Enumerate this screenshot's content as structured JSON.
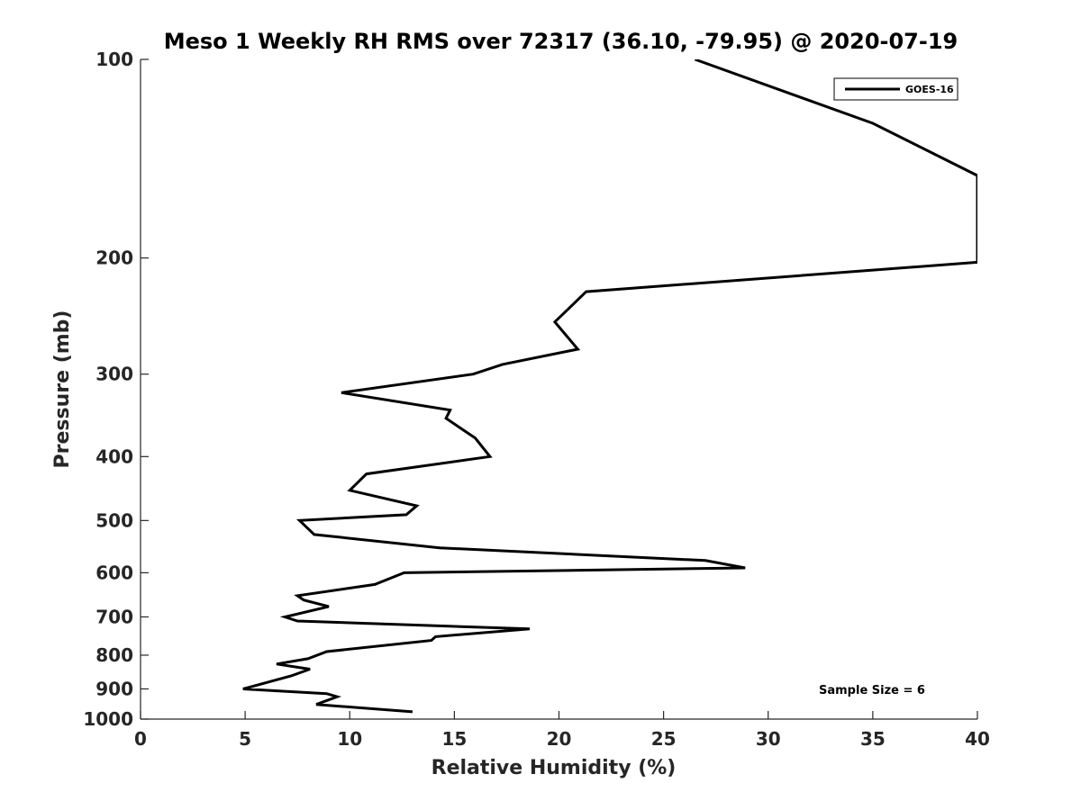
{
  "chart_data": {
    "type": "line",
    "title": "Meso 1 Weekly RH RMS over 72317 (36.10, -79.95) @ 2020-07-19",
    "xlabel": "Relative Humidity (%)",
    "ylabel": "Pressure (mb)",
    "xlim": [
      0,
      40
    ],
    "ylim": [
      100,
      1000
    ],
    "y_scale": "log",
    "y_reversed": true,
    "xticks": [
      0,
      5,
      10,
      15,
      20,
      25,
      30,
      35,
      40
    ],
    "yticks": [
      100,
      200,
      300,
      400,
      500,
      600,
      700,
      800,
      900,
      1000
    ],
    "grid": false,
    "legend_position": "top-right",
    "series": [
      {
        "name": "GOES-16",
        "color": "#000000",
        "points": [
          [
            26.5,
            100
          ],
          [
            35,
            125
          ],
          [
            40,
            150
          ],
          [
            40,
            203
          ],
          [
            21.3,
            225
          ],
          [
            19.8,
            250
          ],
          [
            20.9,
            275
          ],
          [
            17.3,
            290
          ],
          [
            15.9,
            300
          ],
          [
            9.6,
            320
          ],
          [
            14.8,
            340
          ],
          [
            14.6,
            350
          ],
          [
            16.0,
            375
          ],
          [
            16.7,
            400
          ],
          [
            10.8,
            425
          ],
          [
            10.0,
            450
          ],
          [
            13.2,
            475
          ],
          [
            12.7,
            490
          ],
          [
            7.6,
            500
          ],
          [
            8.3,
            525
          ],
          [
            14.3,
            550
          ],
          [
            27.0,
            575
          ],
          [
            28.9,
            590
          ],
          [
            12.6,
            600
          ],
          [
            11.2,
            625
          ],
          [
            7.5,
            650
          ],
          [
            7.8,
            660
          ],
          [
            9.0,
            675
          ],
          [
            6.9,
            700
          ],
          [
            7.5,
            710
          ],
          [
            18.6,
            730
          ],
          [
            14.1,
            750
          ],
          [
            13.9,
            760
          ],
          [
            8.9,
            790
          ],
          [
            8.0,
            810
          ],
          [
            6.5,
            825
          ],
          [
            8.1,
            840
          ],
          [
            7.2,
            860
          ],
          [
            4.9,
            900
          ],
          [
            8.9,
            915
          ],
          [
            9.4,
            925
          ],
          [
            8.4,
            950
          ],
          [
            13.0,
            975
          ]
        ]
      }
    ],
    "annotations": [
      "Sample Size = 6"
    ]
  }
}
